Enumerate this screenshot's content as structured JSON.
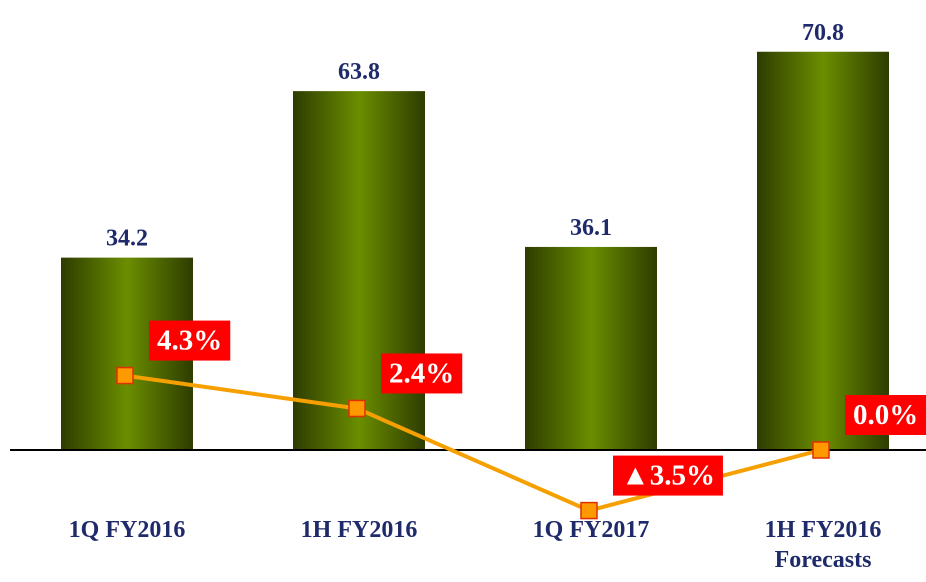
{
  "chart_data": {
    "type": "bar",
    "categories": [
      "1Q FY2016",
      "1H FY2016",
      "1Q FY2017",
      "1H FY2016\nForecasts"
    ],
    "values": [
      34.2,
      63.8,
      36.1,
      70.8
    ],
    "color": "#6b8e00",
    "ylim": [
      0,
      80
    ],
    "y2lim": [
      0,
      26
    ],
    "line": {
      "type": "line",
      "axis": "y2",
      "color": "#f5a000",
      "marker_color": "#ff9900",
      "values": [
        4.3,
        2.4,
        -3.5,
        0.0
      ],
      "value_labels": [
        "4.3%",
        "2.4%",
        "▲3.5%",
        "0.0%"
      ]
    }
  }
}
